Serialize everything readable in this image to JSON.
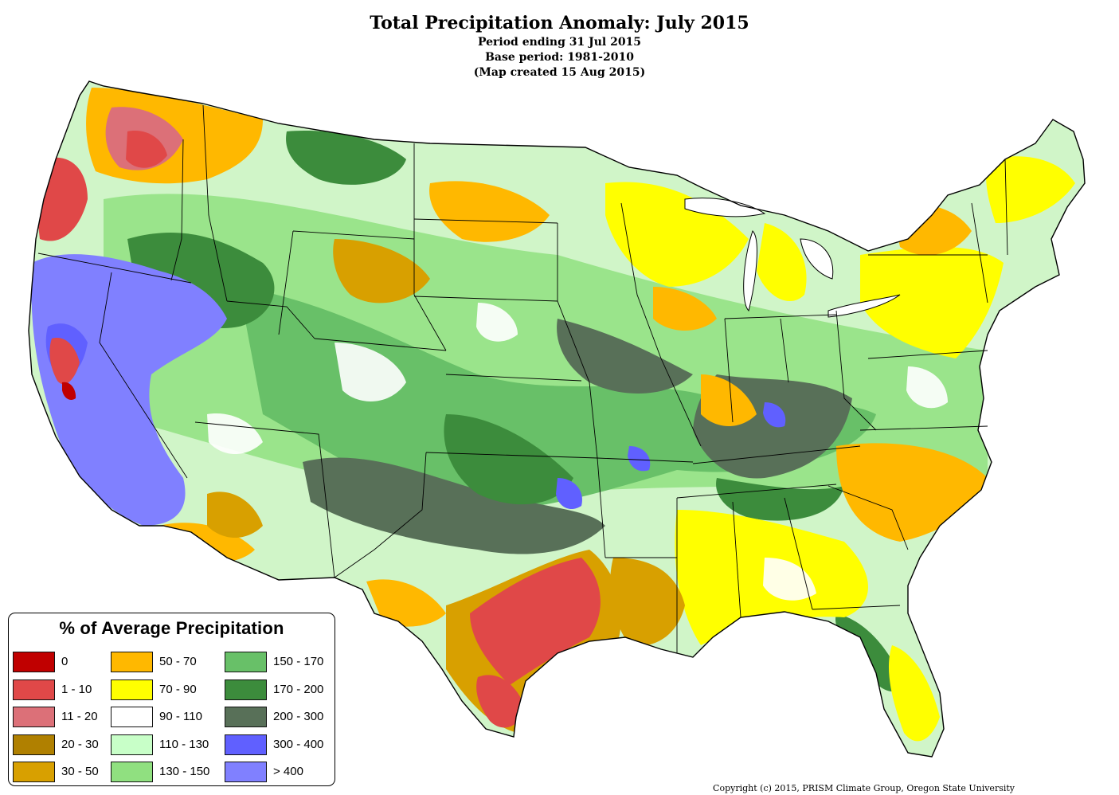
{
  "header": {
    "title": "Total Precipitation Anomaly: July 2015",
    "line1": "Period ending 31 Jul 2015",
    "line2": "Base period: 1981-2010",
    "line3": "(Map created 15 Aug 2015)"
  },
  "legend": {
    "title": "% of Average Precipitation",
    "items": [
      {
        "label": "0",
        "color": "#c00000"
      },
      {
        "label": "1 - 10",
        "color": "#e04848"
      },
      {
        "label": "11 - 20",
        "color": "#dc7078"
      },
      {
        "label": "20 - 30",
        "color": "#b08000"
      },
      {
        "label": "30 - 50",
        "color": "#d8a000"
      },
      {
        "label": "50 - 70",
        "color": "#ffb800"
      },
      {
        "label": "70 - 90",
        "color": "#ffff00"
      },
      {
        "label": "90 - 110",
        "color": "#ffffff"
      },
      {
        "label": "110 - 130",
        "color": "#c8ffc8"
      },
      {
        "label": "130 - 150",
        "color": "#90e080"
      },
      {
        "label": "150 - 170",
        "color": "#68c068"
      },
      {
        "label": "170 - 200",
        "color": "#3c8c3c"
      },
      {
        "label": "200 - 300",
        "color": "#587058"
      },
      {
        "label": "300 - 400",
        "color": "#6060ff"
      },
      {
        "label": "> 400",
        "color": "#8080ff"
      }
    ]
  },
  "footer": {
    "copyright": "Copyright (c) 2015, PRISM Climate Group, Oregon State University"
  }
}
